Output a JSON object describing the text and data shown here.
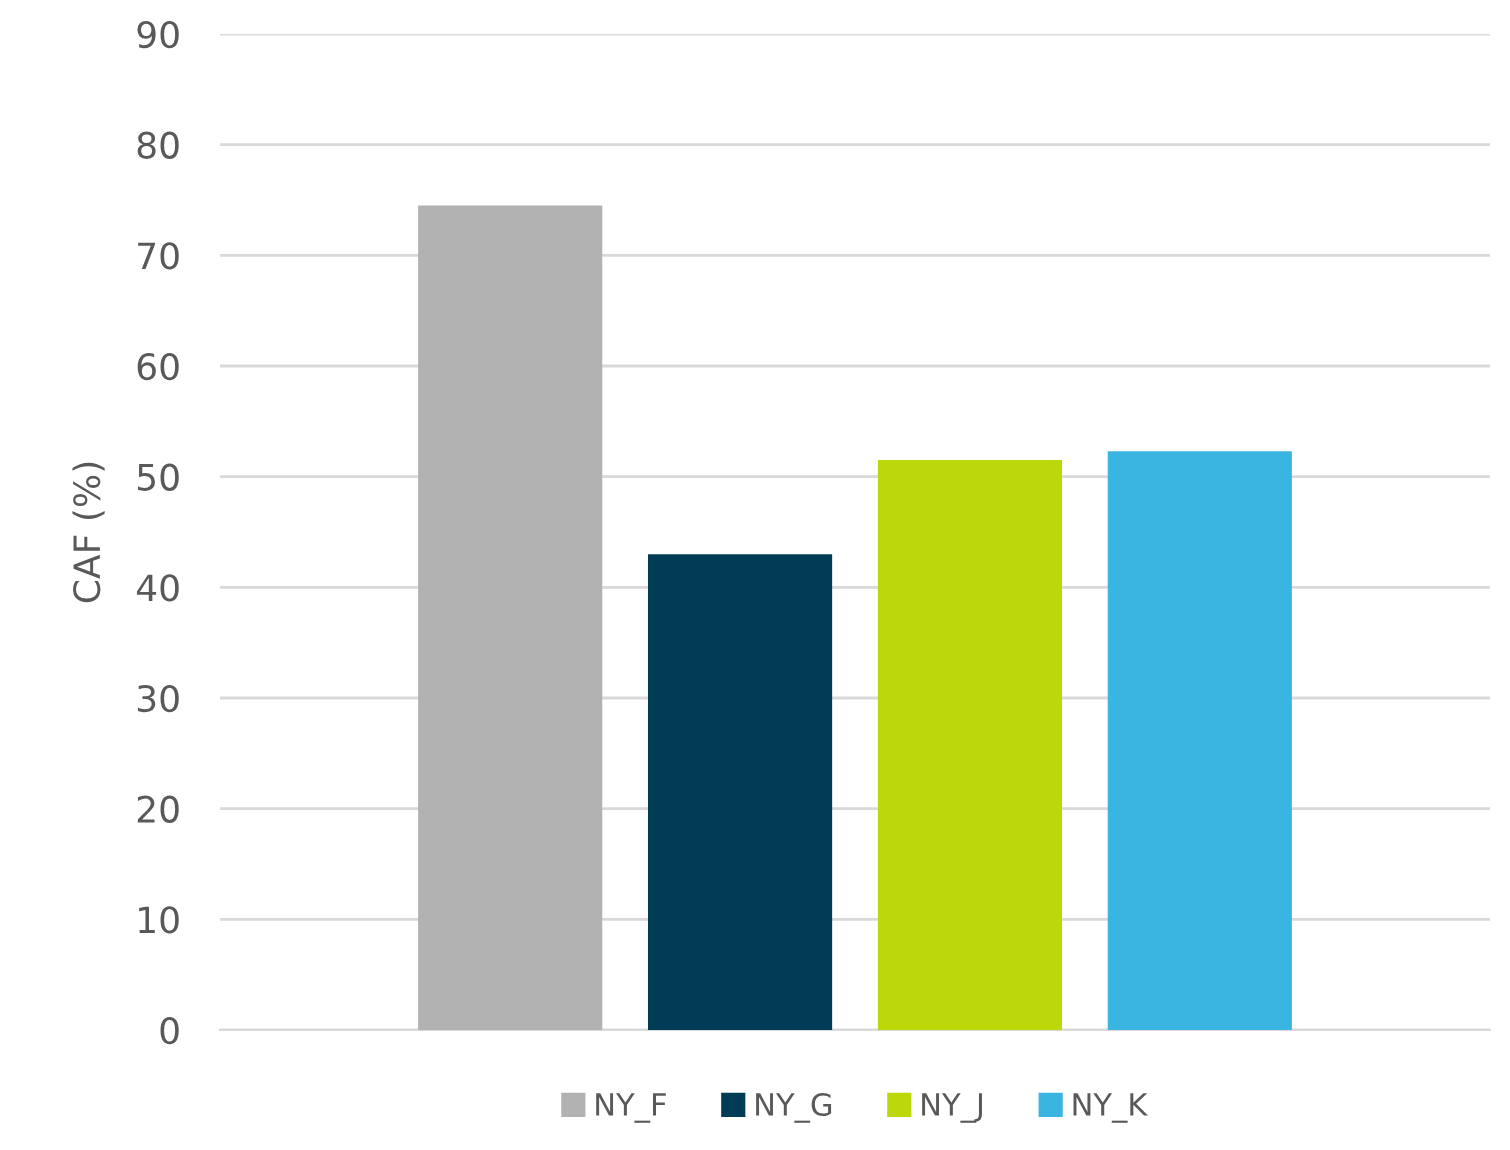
{
  "chart_data": {
    "type": "bar",
    "ylabel": "CAF (%)",
    "categories": [
      null
    ],
    "series": [
      {
        "name": "NY_F",
        "color": "#b1b2b1",
        "values": [
          74.5
        ]
      },
      {
        "name": "NY_G",
        "color": "#003c55",
        "values": [
          43.0
        ]
      },
      {
        "name": "NY_J",
        "color": "#bcd80b",
        "values": [
          51.5
        ]
      },
      {
        "name": "NY_K",
        "color": "#3ab4e0",
        "values": [
          52.3
        ]
      }
    ],
    "ylim": [
      0,
      90
    ],
    "yticks": [
      0,
      10,
      20,
      30,
      40,
      50,
      60,
      70,
      80,
      90
    ],
    "grid": "y",
    "legend": "bottom"
  }
}
